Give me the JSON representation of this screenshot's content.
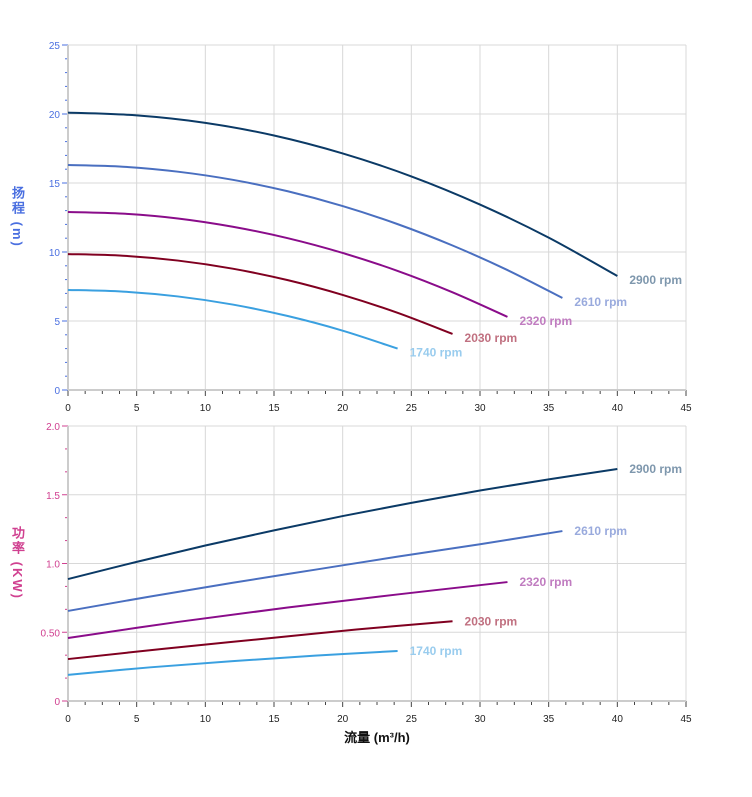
{
  "chart_data": [
    {
      "type": "line",
      "ylabel": "扬程 (m)",
      "xlim": [
        0,
        45
      ],
      "ylim": [
        0,
        25
      ],
      "xticks": [
        0,
        5,
        10,
        15,
        20,
        25,
        30,
        35,
        40,
        45
      ],
      "yticks": [
        "0",
        "5",
        "10",
        "15",
        "20",
        "25"
      ],
      "grid": true,
      "axis_color": "#4a6fe0",
      "series": [
        {
          "name": "2900 rpm",
          "color": "#0b3a66",
          "label_color": "#7e97ad",
          "x": [
            0,
            5,
            10,
            15,
            20,
            25,
            30,
            35,
            40
          ],
          "y": [
            20.1,
            19.9,
            19.36,
            18.44,
            17.14,
            15.48,
            13.44,
            11.04,
            8.26
          ]
        },
        {
          "name": "2610 rpm",
          "color": "#4a6fc0",
          "label_color": "#99aadd",
          "x": [
            0,
            4,
            8,
            12,
            16,
            20,
            24,
            28,
            32,
            36
          ],
          "y": [
            16.3,
            16.18,
            15.82,
            15.23,
            14.4,
            13.33,
            12.02,
            10.47,
            8.69,
            6.67
          ]
        },
        {
          "name": "2320 rpm",
          "color": "#8a0c8a",
          "label_color": "#c07cc0",
          "x": [
            0,
            4,
            8,
            12,
            16,
            20,
            24,
            28,
            32
          ],
          "y": [
            12.9,
            12.78,
            12.43,
            11.83,
            11.0,
            9.93,
            8.63,
            7.08,
            5.3
          ]
        },
        {
          "name": "2030 rpm",
          "color": "#800020",
          "label_color": "#c07080",
          "x": [
            0,
            4,
            8,
            12,
            16,
            20,
            24,
            28
          ],
          "y": [
            9.85,
            9.73,
            9.38,
            8.79,
            7.96,
            6.89,
            5.59,
            4.06
          ]
        },
        {
          "name": "1740 rpm",
          "color": "#3aa0e0",
          "label_color": "#99ccee",
          "x": [
            0,
            4,
            8,
            12,
            16,
            20,
            24
          ],
          "y": [
            7.25,
            7.13,
            6.78,
            6.19,
            5.36,
            4.3,
            3.0
          ]
        }
      ]
    },
    {
      "type": "line",
      "ylabel": "功率 (KW)",
      "xlabel": "流量 (m³/h)",
      "xlim": [
        0,
        45
      ],
      "ylim": [
        0,
        2.0
      ],
      "xticks": [
        0,
        5,
        10,
        15,
        20,
        25,
        30,
        35,
        40,
        45
      ],
      "yticks": [
        "0",
        "0.50",
        "1.0",
        "1.5",
        "2.0"
      ],
      "grid": true,
      "axis_color": "#d04090",
      "series": [
        {
          "name": "2900 rpm",
          "color": "#0b3a66",
          "label_color": "#7e97ad",
          "x": [
            0,
            5,
            10,
            15,
            20,
            25,
            30,
            35,
            40
          ],
          "y": [
            0.887,
            1.012,
            1.131,
            1.241,
            1.345,
            1.441,
            1.531,
            1.612,
            1.687
          ]
        },
        {
          "name": "2610 rpm",
          "color": "#4a6fc0",
          "label_color": "#99aadd",
          "x": [
            0,
            6,
            12,
            18,
            24,
            30,
            36
          ],
          "y": [
            0.655,
            0.76,
            0.86,
            0.955,
            1.05,
            1.14,
            1.236
          ]
        },
        {
          "name": "2320 rpm",
          "color": "#8a0c8a",
          "label_color": "#c07cc0",
          "x": [
            0,
            8,
            16,
            24,
            32
          ],
          "y": [
            0.458,
            0.575,
            0.68,
            0.775,
            0.865
          ]
        },
        {
          "name": "2030 rpm",
          "color": "#800020",
          "label_color": "#c07080",
          "x": [
            0,
            7,
            14,
            21,
            28
          ],
          "y": [
            0.305,
            0.38,
            0.45,
            0.52,
            0.58
          ]
        },
        {
          "name": "1740 rpm",
          "color": "#3aa0e0",
          "label_color": "#99ccee",
          "x": [
            0,
            6,
            12,
            18,
            24
          ],
          "y": [
            0.19,
            0.245,
            0.29,
            0.33,
            0.364
          ]
        }
      ]
    }
  ]
}
